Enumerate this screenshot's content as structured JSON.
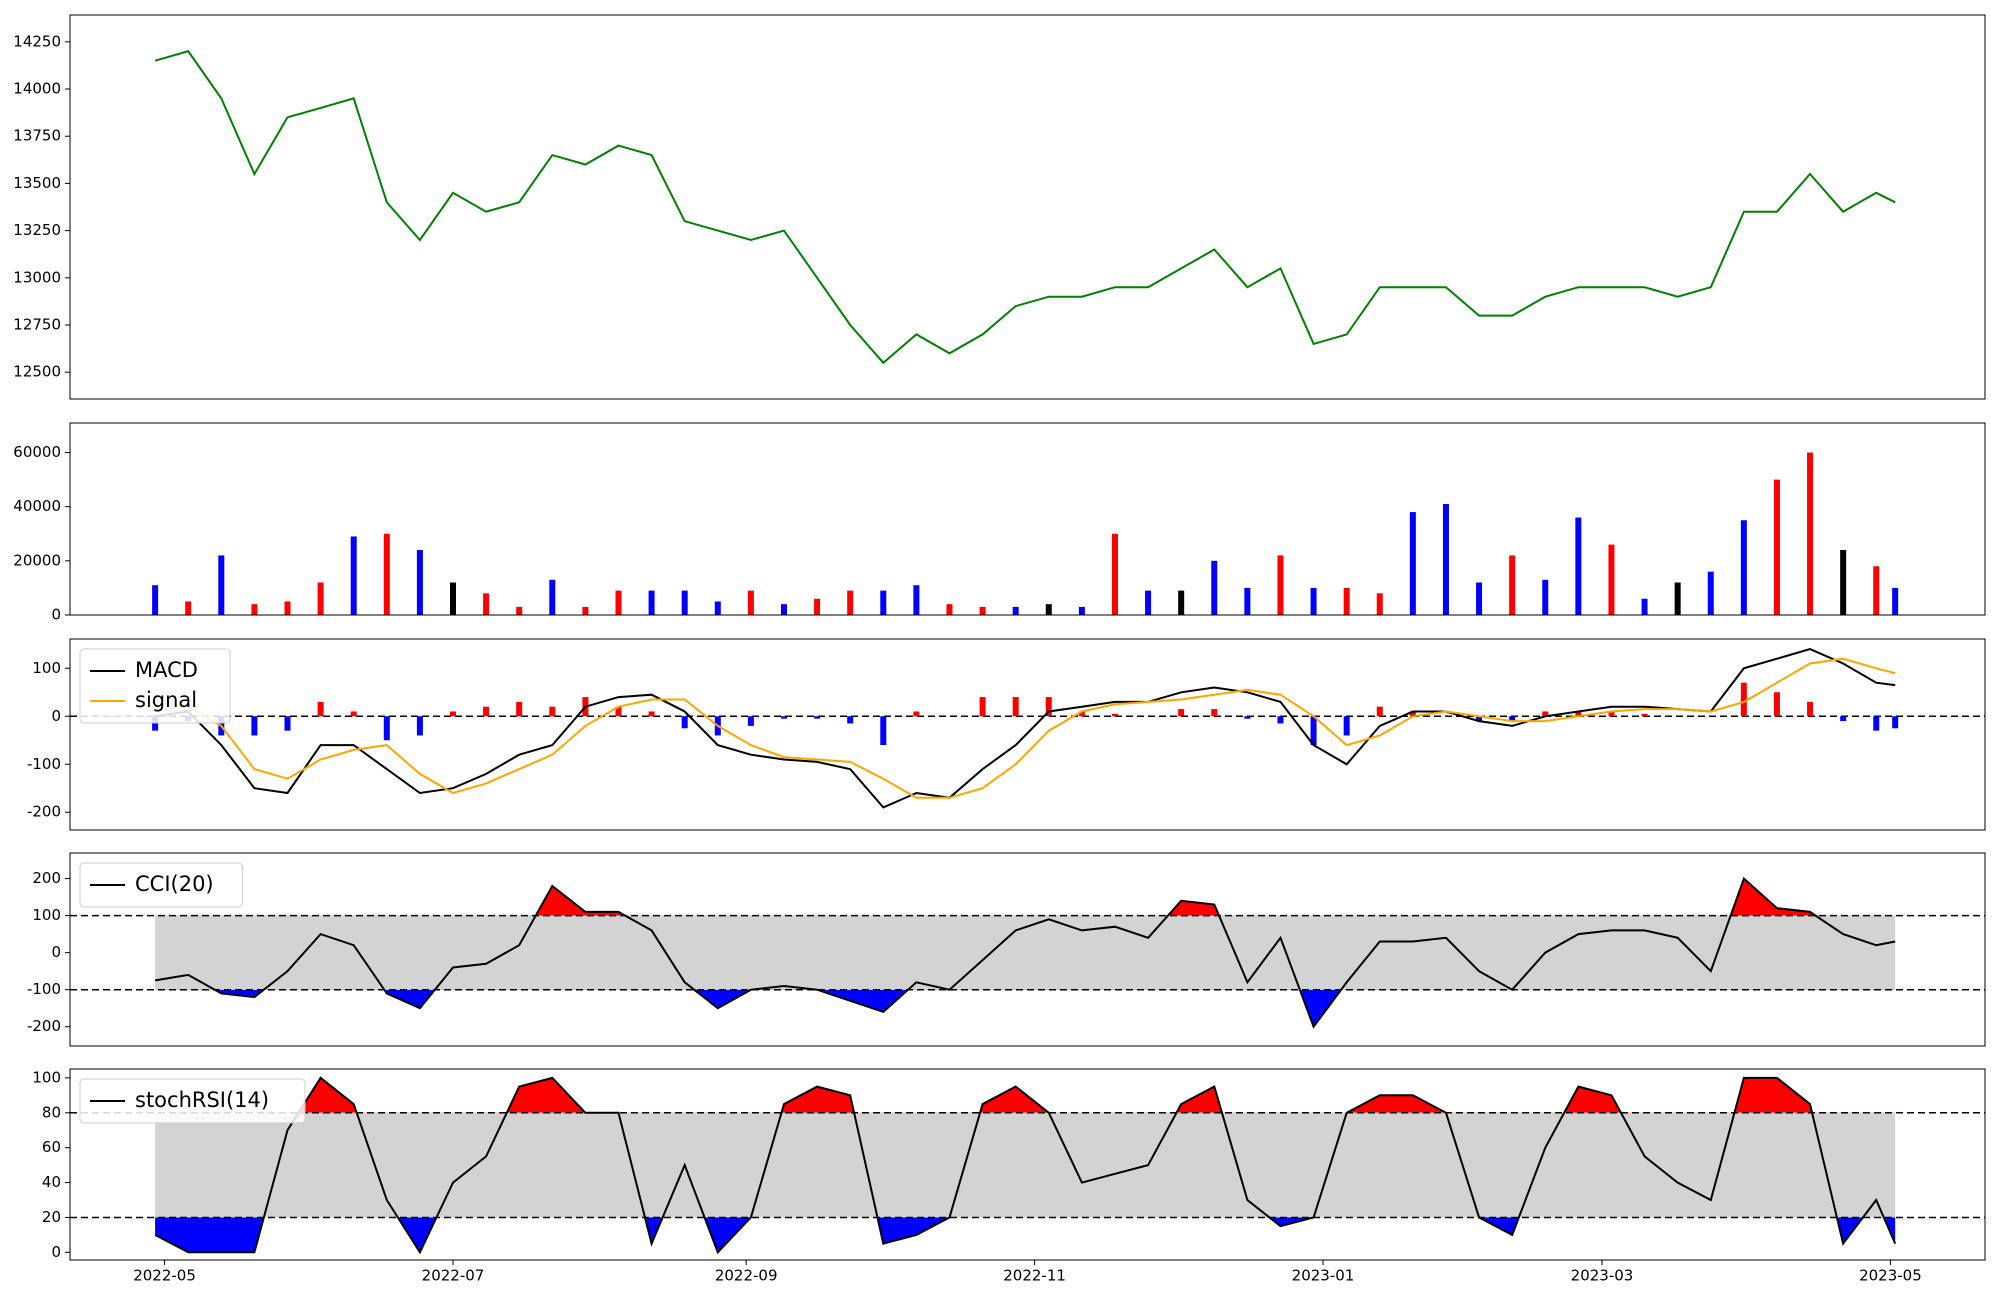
{
  "chart_data": [
    {
      "type": "line",
      "x": [
        "2022-04-29",
        "2022-05-06",
        "2022-05-13",
        "2022-05-20",
        "2022-05-27",
        "2022-06-03",
        "2022-06-10",
        "2022-06-17",
        "2022-06-24",
        "2022-07-01",
        "2022-07-08",
        "2022-07-15",
        "2022-07-22",
        "2022-07-29",
        "2022-08-05",
        "2022-08-12",
        "2022-08-19",
        "2022-08-26",
        "2022-09-02",
        "2022-09-09",
        "2022-09-16",
        "2022-09-23",
        "2022-09-30",
        "2022-10-07",
        "2022-10-14",
        "2022-10-21",
        "2022-10-28",
        "2022-11-04",
        "2022-11-11",
        "2022-11-18",
        "2022-11-25",
        "2022-12-02",
        "2022-12-09",
        "2022-12-16",
        "2022-12-23",
        "2022-12-30",
        "2023-01-06",
        "2023-01-13",
        "2023-01-20",
        "2023-01-27",
        "2023-02-03",
        "2023-02-10",
        "2023-02-17",
        "2023-02-24",
        "2023-03-03",
        "2023-03-10",
        "2023-03-17",
        "2023-03-24",
        "2023-03-31",
        "2023-04-07",
        "2023-04-14",
        "2023-04-21",
        "2023-04-28",
        "2023-05-02"
      ],
      "values": [
        14150,
        14200,
        13950,
        13550,
        13850,
        13900,
        13950,
        13400,
        13200,
        13450,
        13350,
        13400,
        13650,
        13600,
        13700,
        13650,
        13300,
        13250,
        13200,
        13250,
        13000,
        12750,
        12550,
        12700,
        12600,
        12700,
        12850,
        12900,
        12900,
        12950,
        12950,
        13050,
        13150,
        12950,
        13050,
        12650,
        12700,
        12950,
        12950,
        12950,
        12800,
        12800,
        12900,
        12950,
        12950,
        12950,
        12900,
        12950,
        13350,
        13350,
        13550,
        13350,
        13450,
        13400
      ],
      "color": "green",
      "xlim": [
        "2022-04-11",
        "2023-05-21"
      ],
      "ylim": [
        12358,
        14392
      ],
      "yticks": [
        12500,
        12750,
        13000,
        13250,
        13500,
        13750,
        14000,
        14250
      ]
    },
    {
      "type": "bar",
      "x": [
        "2022-04-29",
        "2022-05-06",
        "2022-05-13",
        "2022-05-20",
        "2022-05-27",
        "2022-06-03",
        "2022-06-10",
        "2022-06-17",
        "2022-06-24",
        "2022-07-01",
        "2022-07-08",
        "2022-07-15",
        "2022-07-22",
        "2022-07-29",
        "2022-08-05",
        "2022-08-12",
        "2022-08-19",
        "2022-08-26",
        "2022-09-02",
        "2022-09-09",
        "2022-09-16",
        "2022-09-23",
        "2022-09-30",
        "2022-10-07",
        "2022-10-14",
        "2022-10-21",
        "2022-10-28",
        "2022-11-04",
        "2022-11-11",
        "2022-11-18",
        "2022-11-25",
        "2022-12-02",
        "2022-12-09",
        "2022-12-16",
        "2022-12-23",
        "2022-12-30",
        "2023-01-06",
        "2023-01-13",
        "2023-01-20",
        "2023-01-27",
        "2023-02-03",
        "2023-02-10",
        "2023-02-17",
        "2023-02-24",
        "2023-03-03",
        "2023-03-10",
        "2023-03-17",
        "2023-03-24",
        "2023-03-31",
        "2023-04-07",
        "2023-04-14",
        "2023-04-21",
        "2023-04-28",
        "2023-05-02"
      ],
      "values": [
        11000,
        5000,
        22000,
        4000,
        5000,
        12000,
        29000,
        30000,
        24000,
        12000,
        8000,
        3000,
        13000,
        3000,
        9000,
        9000,
        9000,
        5000,
        9000,
        4000,
        6000,
        9000,
        9000,
        11000,
        4000,
        3000,
        3000,
        4000,
        3000,
        30000,
        9000,
        9000,
        20000,
        10000,
        22000,
        10000,
        10000,
        8000,
        38000,
        41000,
        12000,
        22000,
        13000,
        36000,
        26000,
        6000,
        12000,
        16000,
        35000,
        50000,
        60000,
        24000,
        18000,
        10000
      ],
      "bar_colors": [
        "blue",
        "red",
        "blue",
        "red",
        "red",
        "red",
        "blue",
        "red",
        "blue",
        "black",
        "red",
        "red",
        "blue",
        "red",
        "red",
        "blue",
        "blue",
        "blue",
        "red",
        "blue",
        "red",
        "red",
        "blue",
        "blue",
        "red",
        "red",
        "blue",
        "black",
        "blue",
        "red",
        "blue",
        "black",
        "blue",
        "blue",
        "red",
        "blue",
        "red",
        "red",
        "blue",
        "blue",
        "blue",
        "red",
        "blue",
        "blue",
        "red",
        "blue",
        "black",
        "blue",
        "blue",
        "red",
        "red",
        "black",
        "red",
        "blue"
      ],
      "xlim": [
        "2022-04-11",
        "2023-05-21"
      ],
      "ylim": [
        0,
        70900
      ],
      "yticks": [
        0,
        20000,
        40000,
        60000
      ]
    },
    {
      "type": "macd",
      "x": [
        "2022-04-29",
        "2022-05-06",
        "2022-05-13",
        "2022-05-20",
        "2022-05-27",
        "2022-06-03",
        "2022-06-10",
        "2022-06-17",
        "2022-06-24",
        "2022-07-01",
        "2022-07-08",
        "2022-07-15",
        "2022-07-22",
        "2022-07-29",
        "2022-08-05",
        "2022-08-12",
        "2022-08-19",
        "2022-08-26",
        "2022-09-02",
        "2022-09-09",
        "2022-09-16",
        "2022-09-23",
        "2022-09-30",
        "2022-10-07",
        "2022-10-14",
        "2022-10-21",
        "2022-10-28",
        "2022-11-04",
        "2022-11-11",
        "2022-11-18",
        "2022-11-25",
        "2022-12-02",
        "2022-12-09",
        "2022-12-16",
        "2022-12-23",
        "2022-12-30",
        "2023-01-06",
        "2023-01-13",
        "2023-01-20",
        "2023-01-27",
        "2023-02-03",
        "2023-02-10",
        "2023-02-17",
        "2023-02-24",
        "2023-03-03",
        "2023-03-10",
        "2023-03-17",
        "2023-03-24",
        "2023-03-31",
        "2023-04-07",
        "2023-04-14",
        "2023-04-21",
        "2023-04-28",
        "2023-05-02"
      ],
      "series": [
        {
          "name": "MACD",
          "color": "black",
          "values": [
            0,
            10,
            -60,
            -150,
            -160,
            -60,
            -60,
            -110,
            -160,
            -150,
            -120,
            -80,
            -60,
            20,
            40,
            45,
            10,
            -60,
            -80,
            -90,
            -95,
            -110,
            -190,
            -160,
            -170,
            -110,
            -60,
            10,
            20,
            30,
            30,
            50,
            60,
            50,
            30,
            -60,
            -100,
            -20,
            10,
            10,
            -10,
            -20,
            0,
            10,
            20,
            20,
            15,
            10,
            100,
            120,
            140,
            110,
            70,
            65
          ]
        },
        {
          "name": "signal",
          "color": "orange",
          "values": [
            30,
            20,
            -20,
            -110,
            -130,
            -90,
            -70,
            -60,
            -120,
            -160,
            -140,
            -110,
            -80,
            -20,
            20,
            35,
            35,
            -20,
            -60,
            -85,
            -90,
            -95,
            -130,
            -170,
            -170,
            -150,
            -100,
            -30,
            10,
            25,
            30,
            35,
            45,
            55,
            45,
            0,
            -60,
            -40,
            0,
            10,
            0,
            -10,
            -10,
            0,
            10,
            15,
            15,
            10,
            30,
            70,
            110,
            120,
            100,
            90
          ]
        }
      ],
      "histogram": {
        "values": [
          -30,
          -10,
          -40,
          -40,
          -30,
          30,
          10,
          -50,
          -40,
          10,
          20,
          30,
          20,
          40,
          20,
          10,
          -25,
          -40,
          -20,
          -5,
          -5,
          -15,
          -60,
          10,
          0,
          40,
          40,
          40,
          10,
          5,
          0,
          15,
          15,
          -5,
          -15,
          -60,
          -40,
          20,
          10,
          0,
          -10,
          -10,
          10,
          10,
          10,
          5,
          0,
          0,
          70,
          50,
          30,
          -10,
          -30,
          -25
        ],
        "pos_color": "red",
        "neg_color": "blue"
      },
      "reference_lines": [
        0
      ],
      "xlim": [
        "2022-04-11",
        "2023-05-21"
      ],
      "ylim": [
        -237,
        161
      ],
      "yticks": [
        -200,
        -100,
        0,
        100
      ]
    },
    {
      "type": "oscillator",
      "x": [
        "2022-04-29",
        "2022-05-06",
        "2022-05-13",
        "2022-05-20",
        "2022-05-27",
        "2022-06-03",
        "2022-06-10",
        "2022-06-17",
        "2022-06-24",
        "2022-07-01",
        "2022-07-08",
        "2022-07-15",
        "2022-07-22",
        "2022-07-29",
        "2022-08-05",
        "2022-08-12",
        "2022-08-19",
        "2022-08-26",
        "2022-09-02",
        "2022-09-09",
        "2022-09-16",
        "2022-09-23",
        "2022-09-30",
        "2022-10-07",
        "2022-10-14",
        "2022-10-21",
        "2022-10-28",
        "2022-11-04",
        "2022-11-11",
        "2022-11-18",
        "2022-11-25",
        "2022-12-02",
        "2022-12-09",
        "2022-12-16",
        "2022-12-23",
        "2022-12-30",
        "2023-01-06",
        "2023-01-13",
        "2023-01-20",
        "2023-01-27",
        "2023-02-03",
        "2023-02-10",
        "2023-02-17",
        "2023-02-24",
        "2023-03-03",
        "2023-03-10",
        "2023-03-17",
        "2023-03-24",
        "2023-03-31",
        "2023-04-07",
        "2023-04-14",
        "2023-04-21",
        "2023-04-28",
        "2023-05-02"
      ],
      "series": [
        {
          "name": "CCI(20)",
          "color": "black",
          "values": [
            -75,
            -60,
            -110,
            -120,
            -50,
            50,
            20,
            -110,
            -150,
            -40,
            -30,
            20,
            180,
            110,
            110,
            60,
            -80,
            -150,
            -100,
            -90,
            -100,
            -130,
            -160,
            -80,
            -100,
            -20,
            60,
            90,
            60,
            70,
            40,
            140,
            130,
            -80,
            40,
            -200,
            -80,
            30,
            30,
            40,
            -50,
            -100,
            0,
            50,
            60,
            60,
            40,
            -50,
            200,
            120,
            110,
            50,
            20,
            30
          ]
        }
      ],
      "thresholds": [
        100,
        -100
      ],
      "band_color": "lightgray",
      "over_color": "red",
      "under_color": "blue",
      "xlim": [
        "2022-04-11",
        "2023-05-21"
      ],
      "ylim": [
        -252,
        269
      ],
      "yticks": [
        -200,
        -100,
        0,
        100,
        200
      ]
    },
    {
      "type": "oscillator",
      "x": [
        "2022-04-29",
        "2022-05-06",
        "2022-05-13",
        "2022-05-20",
        "2022-05-27",
        "2022-06-03",
        "2022-06-10",
        "2022-06-17",
        "2022-06-24",
        "2022-07-01",
        "2022-07-08",
        "2022-07-15",
        "2022-07-22",
        "2022-07-29",
        "2022-08-05",
        "2022-08-12",
        "2022-08-19",
        "2022-08-26",
        "2022-09-02",
        "2022-09-09",
        "2022-09-16",
        "2022-09-23",
        "2022-09-30",
        "2022-10-07",
        "2022-10-14",
        "2022-10-21",
        "2022-10-28",
        "2022-11-04",
        "2022-11-11",
        "2022-11-18",
        "2022-11-25",
        "2022-12-02",
        "2022-12-09",
        "2022-12-16",
        "2022-12-23",
        "2022-12-30",
        "2023-01-06",
        "2023-01-13",
        "2023-01-20",
        "2023-01-27",
        "2023-02-03",
        "2023-02-10",
        "2023-02-17",
        "2023-02-24",
        "2023-03-03",
        "2023-03-10",
        "2023-03-17",
        "2023-03-24",
        "2023-03-31",
        "2023-04-07",
        "2023-04-14",
        "2023-04-21",
        "2023-04-28",
        "2023-05-02"
      ],
      "series": [
        {
          "name": "stochRSI(14)",
          "color": "black",
          "values": [
            10,
            0,
            0,
            0,
            70,
            100,
            85,
            30,
            0,
            40,
            55,
            95,
            100,
            80,
            80,
            5,
            50,
            0,
            20,
            85,
            95,
            90,
            5,
            10,
            20,
            85,
            95,
            80,
            40,
            45,
            50,
            85,
            95,
            30,
            15,
            20,
            80,
            90,
            90,
            80,
            20,
            10,
            60,
            95,
            90,
            55,
            40,
            30,
            100,
            100,
            85,
            5,
            30,
            5
          ]
        }
      ],
      "thresholds": [
        80,
        20
      ],
      "band_color": "lightgray",
      "over_color": "red",
      "under_color": "blue",
      "xlim": [
        "2022-04-11",
        "2023-05-21"
      ],
      "ylim": [
        -4.4,
        105.1
      ],
      "yticks": [
        0,
        20,
        40,
        60,
        80,
        100
      ],
      "xticks": [
        {
          "value": "2022-05-01",
          "label": "2022-05"
        },
        {
          "value": "2022-07-01",
          "label": "2022-07"
        },
        {
          "value": "2022-09-01",
          "label": "2022-09"
        },
        {
          "value": "2022-11-01",
          "label": "2022-11"
        },
        {
          "value": "2023-01-01",
          "label": "2023-01"
        },
        {
          "value": "2023-03-01",
          "label": "2023-03"
        },
        {
          "value": "2023-05-01",
          "label": "2023-05"
        }
      ]
    }
  ]
}
